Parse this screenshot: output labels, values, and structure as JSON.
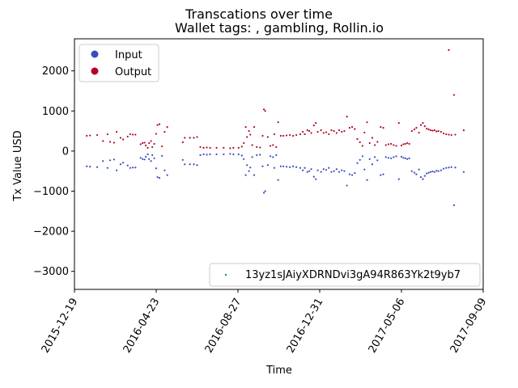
{
  "chart_data": {
    "type": "scatter",
    "title": "Transcations over time",
    "subtitle": "Wallet tags: , gambling, Rollin.io",
    "xlabel": "Time",
    "ylabel": "Tx Value USD",
    "xlim": [
      "2015-12-19",
      "2017-09-09"
    ],
    "ylim": [
      -3450,
      2800
    ],
    "x_ticks": [
      "2015-12-19",
      "2016-04-23",
      "2016-08-27",
      "2016-12-31",
      "2017-05-06",
      "2017-09-09"
    ],
    "y_ticks": [
      -3000,
      -2000,
      -1000,
      0,
      1000,
      2000
    ],
    "legend_categories": [
      {
        "label": "Input",
        "color": "#3b4cc0"
      },
      {
        "label": "Output",
        "color": "#b40426"
      }
    ],
    "legend_wallet": {
      "label": "13yz1sJAiyXDRNDvi3gA94R863Yk2t9yb7",
      "color": "#2a8a8a"
    },
    "series": [
      {
        "name": "Input",
        "color": "#3b4cc0",
        "points": [
          [
            "2016-01-07",
            -380
          ],
          [
            "2016-01-12",
            -390
          ],
          [
            "2016-01-23",
            -400
          ],
          [
            "2016-02-01",
            -250
          ],
          [
            "2016-02-08",
            -420
          ],
          [
            "2016-02-12",
            -230
          ],
          [
            "2016-02-18",
            -210
          ],
          [
            "2016-02-22",
            -480
          ],
          [
            "2016-02-28",
            -330
          ],
          [
            "2016-03-03",
            -290
          ],
          [
            "2016-03-10",
            -360
          ],
          [
            "2016-03-14",
            -420
          ],
          [
            "2016-03-18",
            -410
          ],
          [
            "2016-03-22",
            -410
          ],
          [
            "2016-03-30",
            -170
          ],
          [
            "2016-04-02",
            -200
          ],
          [
            "2016-04-05",
            -210
          ],
          [
            "2016-04-07",
            -140
          ],
          [
            "2016-04-10",
            -80
          ],
          [
            "2016-04-12",
            -200
          ],
          [
            "2016-04-15",
            -250
          ],
          [
            "2016-04-17",
            -100
          ],
          [
            "2016-04-20",
            -180
          ],
          [
            "2016-04-23",
            -430
          ],
          [
            "2016-04-25",
            -650
          ],
          [
            "2016-04-28",
            -670
          ],
          [
            "2016-05-02",
            -120
          ],
          [
            "2016-05-06",
            -480
          ],
          [
            "2016-05-10",
            -600
          ],
          [
            "2016-06-03",
            -220
          ],
          [
            "2016-06-06",
            -330
          ],
          [
            "2016-06-14",
            -330
          ],
          [
            "2016-06-20",
            -330
          ],
          [
            "2016-06-25",
            -350
          ],
          [
            "2016-06-30",
            -100
          ],
          [
            "2016-07-05",
            -80
          ],
          [
            "2016-07-10",
            -90
          ],
          [
            "2016-07-15",
            -80
          ],
          [
            "2016-07-25",
            -80
          ],
          [
            "2016-08-05",
            -80
          ],
          [
            "2016-08-15",
            -70
          ],
          [
            "2016-08-20",
            -80
          ],
          [
            "2016-08-28",
            -80
          ],
          [
            "2016-09-02",
            -110
          ],
          [
            "2016-09-05",
            -200
          ],
          [
            "2016-09-08",
            -600
          ],
          [
            "2016-09-10",
            -350
          ],
          [
            "2016-09-13",
            -500
          ],
          [
            "2016-09-15",
            -410
          ],
          [
            "2016-09-18",
            -150
          ],
          [
            "2016-09-21",
            -600
          ],
          [
            "2016-09-25",
            -100
          ],
          [
            "2016-09-30",
            -90
          ],
          [
            "2016-10-04",
            -380
          ],
          [
            "2016-10-06",
            -1040
          ],
          [
            "2016-10-08",
            -1000
          ],
          [
            "2016-10-12",
            -350
          ],
          [
            "2016-10-16",
            -130
          ],
          [
            "2016-10-20",
            -150
          ],
          [
            "2016-10-22",
            -420
          ],
          [
            "2016-10-25",
            -100
          ],
          [
            "2016-10-28",
            -720
          ],
          [
            "2016-11-01",
            -380
          ],
          [
            "2016-11-05",
            -380
          ],
          [
            "2016-11-10",
            -390
          ],
          [
            "2016-11-15",
            -400
          ],
          [
            "2016-11-20",
            -380
          ],
          [
            "2016-11-25",
            -400
          ],
          [
            "2016-12-01",
            -420
          ],
          [
            "2016-12-05",
            -480
          ],
          [
            "2016-12-08",
            -420
          ],
          [
            "2016-12-12",
            -520
          ],
          [
            "2016-12-15",
            -500
          ],
          [
            "2016-12-18",
            -450
          ],
          [
            "2016-12-22",
            -640
          ],
          [
            "2016-12-25",
            -700
          ],
          [
            "2016-12-28",
            -480
          ],
          [
            "2017-01-02",
            -520
          ],
          [
            "2017-01-06",
            -450
          ],
          [
            "2017-01-10",
            -470
          ],
          [
            "2017-01-14",
            -420
          ],
          [
            "2017-01-18",
            -520
          ],
          [
            "2017-01-22",
            -500
          ],
          [
            "2017-01-26",
            -450
          ],
          [
            "2017-01-30",
            -520
          ],
          [
            "2017-02-03",
            -480
          ],
          [
            "2017-02-07",
            -500
          ],
          [
            "2017-02-11",
            -860
          ],
          [
            "2017-02-15",
            -580
          ],
          [
            "2017-02-19",
            -600
          ],
          [
            "2017-02-23",
            -550
          ],
          [
            "2017-02-27",
            -300
          ],
          [
            "2017-03-03",
            -220
          ],
          [
            "2017-03-07",
            -130
          ],
          [
            "2017-03-10",
            -460
          ],
          [
            "2017-03-14",
            -720
          ],
          [
            "2017-03-18",
            -200
          ],
          [
            "2017-03-22",
            -330
          ],
          [
            "2017-03-26",
            -150
          ],
          [
            "2017-03-30",
            -230
          ],
          [
            "2017-04-04",
            -600
          ],
          [
            "2017-04-08",
            -580
          ],
          [
            "2017-04-12",
            -150
          ],
          [
            "2017-04-16",
            -170
          ],
          [
            "2017-04-20",
            -180
          ],
          [
            "2017-04-24",
            -150
          ],
          [
            "2017-04-28",
            -130
          ],
          [
            "2017-05-02",
            -700
          ],
          [
            "2017-05-06",
            -140
          ],
          [
            "2017-05-09",
            -170
          ],
          [
            "2017-05-12",
            -180
          ],
          [
            "2017-05-15",
            -200
          ],
          [
            "2017-05-18",
            -180
          ],
          [
            "2017-05-22",
            -500
          ],
          [
            "2017-05-26",
            -540
          ],
          [
            "2017-05-29",
            -580
          ],
          [
            "2017-06-02",
            -460
          ],
          [
            "2017-06-05",
            -650
          ],
          [
            "2017-06-08",
            -700
          ],
          [
            "2017-06-11",
            -620
          ],
          [
            "2017-06-14",
            -560
          ],
          [
            "2017-06-17",
            -540
          ],
          [
            "2017-06-20",
            -520
          ],
          [
            "2017-06-23",
            -510
          ],
          [
            "2017-06-26",
            -520
          ],
          [
            "2017-06-29",
            -490
          ],
          [
            "2017-07-02",
            -500
          ],
          [
            "2017-07-06",
            -480
          ],
          [
            "2017-07-10",
            -440
          ],
          [
            "2017-07-14",
            -420
          ],
          [
            "2017-07-18",
            -410
          ],
          [
            "2017-07-22",
            -400
          ],
          [
            "2017-07-26",
            -1350
          ],
          [
            "2017-07-28",
            -410
          ],
          [
            "2017-08-10",
            -520
          ]
        ]
      },
      {
        "name": "Output",
        "color": "#b40426",
        "points": [
          [
            "2016-01-07",
            380
          ],
          [
            "2016-01-12",
            390
          ],
          [
            "2016-01-23",
            400
          ],
          [
            "2016-02-01",
            250
          ],
          [
            "2016-02-08",
            420
          ],
          [
            "2016-02-12",
            230
          ],
          [
            "2016-02-18",
            210
          ],
          [
            "2016-02-22",
            480
          ],
          [
            "2016-02-28",
            330
          ],
          [
            "2016-03-03",
            290
          ],
          [
            "2016-03-10",
            360
          ],
          [
            "2016-03-14",
            420
          ],
          [
            "2016-03-18",
            410
          ],
          [
            "2016-03-22",
            410
          ],
          [
            "2016-03-30",
            170
          ],
          [
            "2016-04-02",
            200
          ],
          [
            "2016-04-05",
            210
          ],
          [
            "2016-04-07",
            140
          ],
          [
            "2016-04-10",
            80
          ],
          [
            "2016-04-12",
            200
          ],
          [
            "2016-04-15",
            250
          ],
          [
            "2016-04-17",
            100
          ],
          [
            "2016-04-20",
            180
          ],
          [
            "2016-04-23",
            430
          ],
          [
            "2016-04-25",
            650
          ],
          [
            "2016-04-28",
            670
          ],
          [
            "2016-05-02",
            120
          ],
          [
            "2016-05-06",
            480
          ],
          [
            "2016-05-10",
            600
          ],
          [
            "2016-06-03",
            220
          ],
          [
            "2016-06-06",
            330
          ],
          [
            "2016-06-14",
            330
          ],
          [
            "2016-06-20",
            330
          ],
          [
            "2016-06-25",
            350
          ],
          [
            "2016-06-30",
            100
          ],
          [
            "2016-07-05",
            80
          ],
          [
            "2016-07-10",
            90
          ],
          [
            "2016-07-15",
            80
          ],
          [
            "2016-07-25",
            80
          ],
          [
            "2016-08-05",
            80
          ],
          [
            "2016-08-15",
            70
          ],
          [
            "2016-08-20",
            80
          ],
          [
            "2016-08-28",
            80
          ],
          [
            "2016-09-02",
            110
          ],
          [
            "2016-09-05",
            200
          ],
          [
            "2016-09-08",
            600
          ],
          [
            "2016-09-10",
            350
          ],
          [
            "2016-09-13",
            500
          ],
          [
            "2016-09-15",
            410
          ],
          [
            "2016-09-18",
            150
          ],
          [
            "2016-09-21",
            600
          ],
          [
            "2016-09-25",
            100
          ],
          [
            "2016-09-30",
            90
          ],
          [
            "2016-10-04",
            380
          ],
          [
            "2016-10-06",
            1040
          ],
          [
            "2016-10-08",
            1000
          ],
          [
            "2016-10-12",
            350
          ],
          [
            "2016-10-16",
            130
          ],
          [
            "2016-10-20",
            150
          ],
          [
            "2016-10-22",
            420
          ],
          [
            "2016-10-25",
            100
          ],
          [
            "2016-10-28",
            720
          ],
          [
            "2016-11-01",
            380
          ],
          [
            "2016-11-05",
            380
          ],
          [
            "2016-11-10",
            390
          ],
          [
            "2016-11-15",
            400
          ],
          [
            "2016-11-20",
            380
          ],
          [
            "2016-11-25",
            400
          ],
          [
            "2016-12-01",
            420
          ],
          [
            "2016-12-05",
            480
          ],
          [
            "2016-12-08",
            420
          ],
          [
            "2016-12-12",
            520
          ],
          [
            "2016-12-15",
            500
          ],
          [
            "2016-12-18",
            450
          ],
          [
            "2016-12-22",
            640
          ],
          [
            "2016-12-25",
            700
          ],
          [
            "2016-12-28",
            480
          ],
          [
            "2017-01-02",
            520
          ],
          [
            "2017-01-06",
            450
          ],
          [
            "2017-01-10",
            470
          ],
          [
            "2017-01-14",
            420
          ],
          [
            "2017-01-18",
            520
          ],
          [
            "2017-01-22",
            500
          ],
          [
            "2017-01-26",
            450
          ],
          [
            "2017-01-30",
            520
          ],
          [
            "2017-02-03",
            480
          ],
          [
            "2017-02-07",
            500
          ],
          [
            "2017-02-11",
            860
          ],
          [
            "2017-02-15",
            580
          ],
          [
            "2017-02-19",
            600
          ],
          [
            "2017-02-23",
            550
          ],
          [
            "2017-02-27",
            300
          ],
          [
            "2017-03-03",
            220
          ],
          [
            "2017-03-07",
            130
          ],
          [
            "2017-03-10",
            460
          ],
          [
            "2017-03-14",
            720
          ],
          [
            "2017-03-18",
            200
          ],
          [
            "2017-03-22",
            330
          ],
          [
            "2017-03-26",
            150
          ],
          [
            "2017-03-30",
            230
          ],
          [
            "2017-04-04",
            600
          ],
          [
            "2017-04-08",
            580
          ],
          [
            "2017-04-12",
            150
          ],
          [
            "2017-04-16",
            170
          ],
          [
            "2017-04-20",
            180
          ],
          [
            "2017-04-24",
            150
          ],
          [
            "2017-04-28",
            130
          ],
          [
            "2017-05-02",
            700
          ],
          [
            "2017-05-06",
            140
          ],
          [
            "2017-05-09",
            170
          ],
          [
            "2017-05-12",
            180
          ],
          [
            "2017-05-15",
            200
          ],
          [
            "2017-05-18",
            180
          ],
          [
            "2017-05-22",
            500
          ],
          [
            "2017-05-26",
            540
          ],
          [
            "2017-05-29",
            580
          ],
          [
            "2017-06-02",
            460
          ],
          [
            "2017-06-05",
            650
          ],
          [
            "2017-06-08",
            700
          ],
          [
            "2017-06-11",
            620
          ],
          [
            "2017-06-14",
            560
          ],
          [
            "2017-06-17",
            540
          ],
          [
            "2017-06-20",
            520
          ],
          [
            "2017-06-23",
            510
          ],
          [
            "2017-06-26",
            520
          ],
          [
            "2017-06-29",
            490
          ],
          [
            "2017-07-02",
            500
          ],
          [
            "2017-07-06",
            480
          ],
          [
            "2017-07-10",
            440
          ],
          [
            "2017-07-14",
            420
          ],
          [
            "2017-07-18",
            410
          ],
          [
            "2017-07-22",
            400
          ],
          [
            "2017-07-26",
            1400
          ],
          [
            "2017-07-28",
            410
          ],
          [
            "2017-08-10",
            520
          ],
          [
            "2017-07-18",
            2520
          ]
        ]
      }
    ],
    "grid": false,
    "legend_placement": [
      "upper-left",
      "lower-right"
    ]
  }
}
